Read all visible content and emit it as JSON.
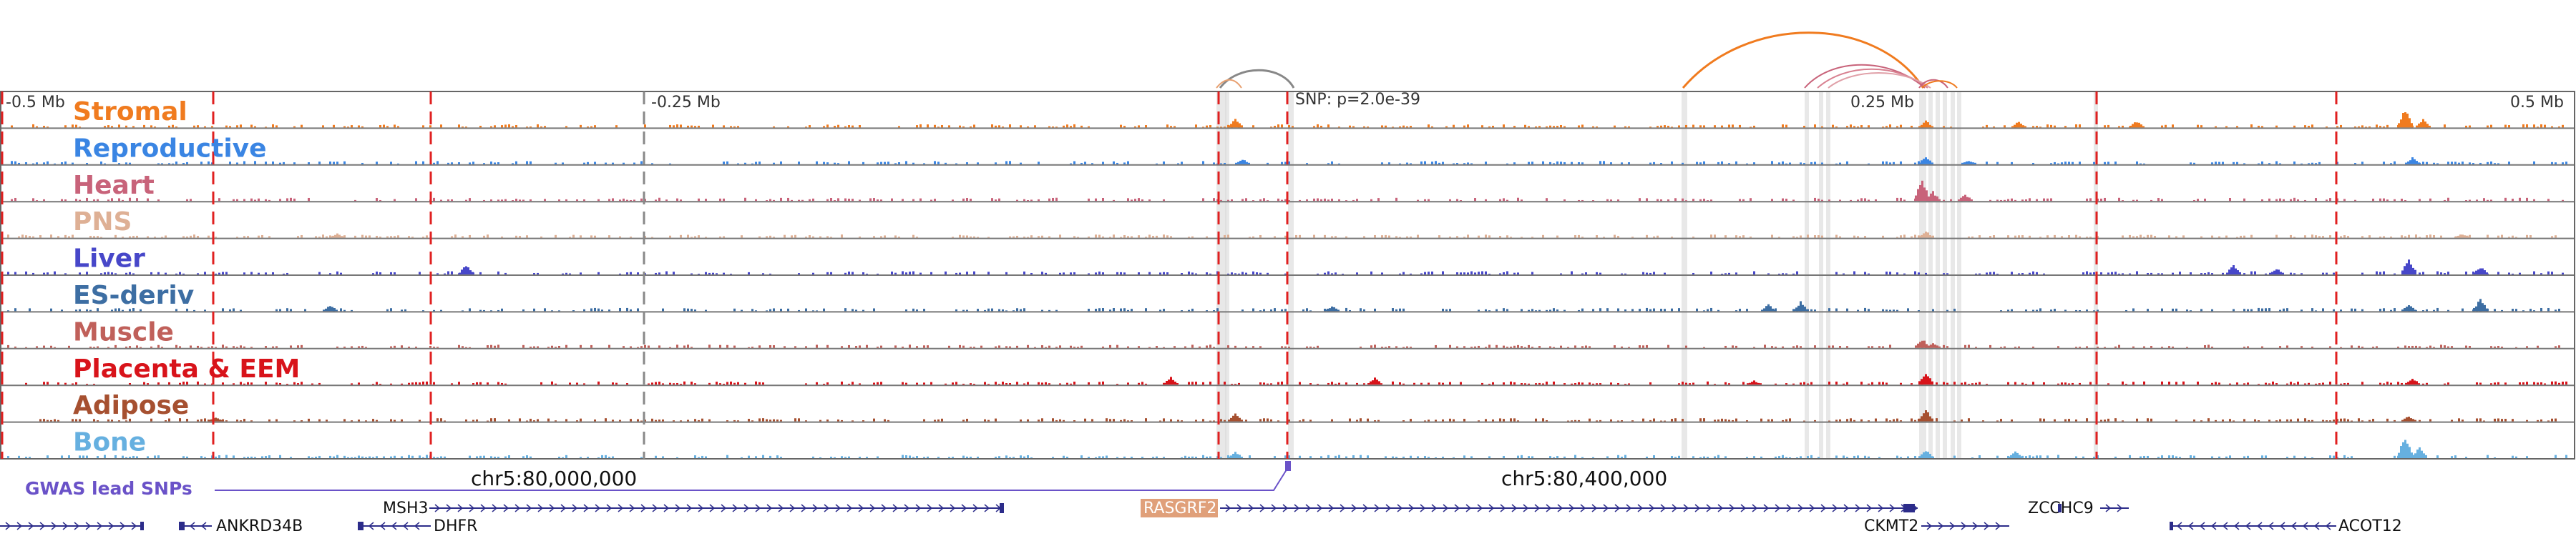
{
  "scale_labels": {
    "left": "-0.5 Mb",
    "mid_left": "-0.25 Mb",
    "mid_right": "0.25 Mb",
    "right": "0.5 Mb"
  },
  "snp_annotation": "SNP: p=2.0e-39",
  "gwas_label": "GWAS lead SNPs",
  "coordinates": {
    "left": "chr5:80,000,000",
    "right": "chr5:80,400,000"
  },
  "tracks": [
    {
      "label": "Stromal",
      "color": "#f07b1f"
    },
    {
      "label": "Reproductive",
      "color": "#3a85e3"
    },
    {
      "label": "Heart",
      "color": "#c8637a"
    },
    {
      "label": "PNS",
      "color": "#deb095"
    },
    {
      "label": "Liver",
      "color": "#4747c9"
    },
    {
      "label": "ES-deriv",
      "color": "#3d6ea3"
    },
    {
      "label": "Muscle",
      "color": "#c0605a"
    },
    {
      "label": "Placenta & EEM",
      "color": "#d8131a"
    },
    {
      "label": "Adipose",
      "color": "#a65030"
    },
    {
      "label": "Bone",
      "color": "#66b0e0"
    }
  ],
  "genes": {
    "ankrd34b": "ANKRD34B",
    "dhfr": "DHFR",
    "msh3": "MSH3",
    "rasgrf2": "RASGRF2",
    "ckmt2": "CKMT2",
    "zcchc9": "ZCCHC9",
    "acot12": "ACOT12"
  },
  "colors": {
    "gwas": "#6a52c8",
    "gene": "#2c2c8a",
    "highlight_gene_bg": "#e0a07a",
    "boundary": "#e02020",
    "frame": "#666666"
  }
}
